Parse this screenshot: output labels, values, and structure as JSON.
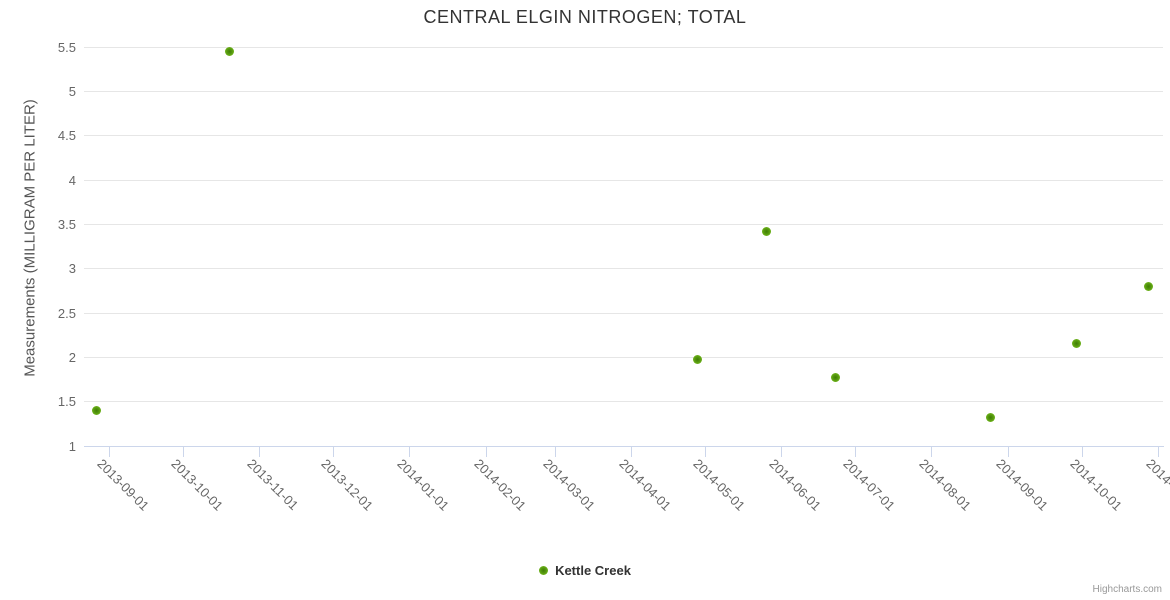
{
  "chart": {
    "title": "CENTRAL ELGIN NITROGEN; TOTAL",
    "credits_label": "Highcharts.com"
  },
  "legend": {
    "items": [
      {
        "label": "Kettle Creek",
        "marker_color": "#6fb41c"
      }
    ]
  },
  "chart_data": {
    "type": "scatter",
    "title": "CENTRAL ELGIN NITROGEN; TOTAL",
    "xlabel": "",
    "ylabel": "Measurements (MILLIGRAM PER LITER)",
    "x_type": "datetime",
    "x_range": [
      "2013-08-22",
      "2014-11-03"
    ],
    "ylim": [
      1,
      5.73
    ],
    "y_ticks": [
      1,
      1.5,
      2,
      2.5,
      3,
      3.5,
      4,
      4.5,
      5,
      5.5
    ],
    "x_ticks": [
      {
        "date": "2013-09-01",
        "label": "2013-09-01"
      },
      {
        "date": "2013-10-01",
        "label": "2013-10-01"
      },
      {
        "date": "2013-11-01",
        "label": "2013-11-01"
      },
      {
        "date": "2013-12-01",
        "label": "2013-12-01"
      },
      {
        "date": "2014-01-01",
        "label": "2014-01-01"
      },
      {
        "date": "2014-02-01",
        "label": "2014-02-01"
      },
      {
        "date": "2014-03-01",
        "label": "2014-03-01"
      },
      {
        "date": "2014-04-01",
        "label": "2014-04-01"
      },
      {
        "date": "2014-05-01",
        "label": "2014-05-01"
      },
      {
        "date": "2014-06-01",
        "label": "2014-06-01"
      },
      {
        "date": "2014-07-01",
        "label": "2014-07-01"
      },
      {
        "date": "2014-08-01",
        "label": "2014-08-01"
      },
      {
        "date": "2014-09-01",
        "label": "2014-09-01"
      },
      {
        "date": "2014-10-01",
        "label": "2014-10-01"
      },
      {
        "date": "2014-11-01",
        "label": "2014-…"
      }
    ],
    "grid": "horizontal",
    "legend_position": "bottom-center",
    "series": [
      {
        "name": "Kettle Creek",
        "color": "#6fb41c",
        "points": [
          {
            "x": "2013-08-27",
            "y": 1.4
          },
          {
            "x": "2013-10-20",
            "y": 5.45
          },
          {
            "x": "2014-04-28",
            "y": 1.98
          },
          {
            "x": "2014-05-26",
            "y": 3.42
          },
          {
            "x": "2014-06-23",
            "y": 1.77
          },
          {
            "x": "2014-08-25",
            "y": 1.32
          },
          {
            "x": "2014-09-29",
            "y": 2.16
          },
          {
            "x": "2014-10-28",
            "y": 2.8
          }
        ]
      }
    ],
    "colors": {
      "marker": "#6fb41c",
      "gridline": "#e6e6e6",
      "axis_line": "#ccd6eb",
      "title_text": "#333333",
      "axis_label_text": "#666666",
      "credits_text": "#999999"
    }
  }
}
